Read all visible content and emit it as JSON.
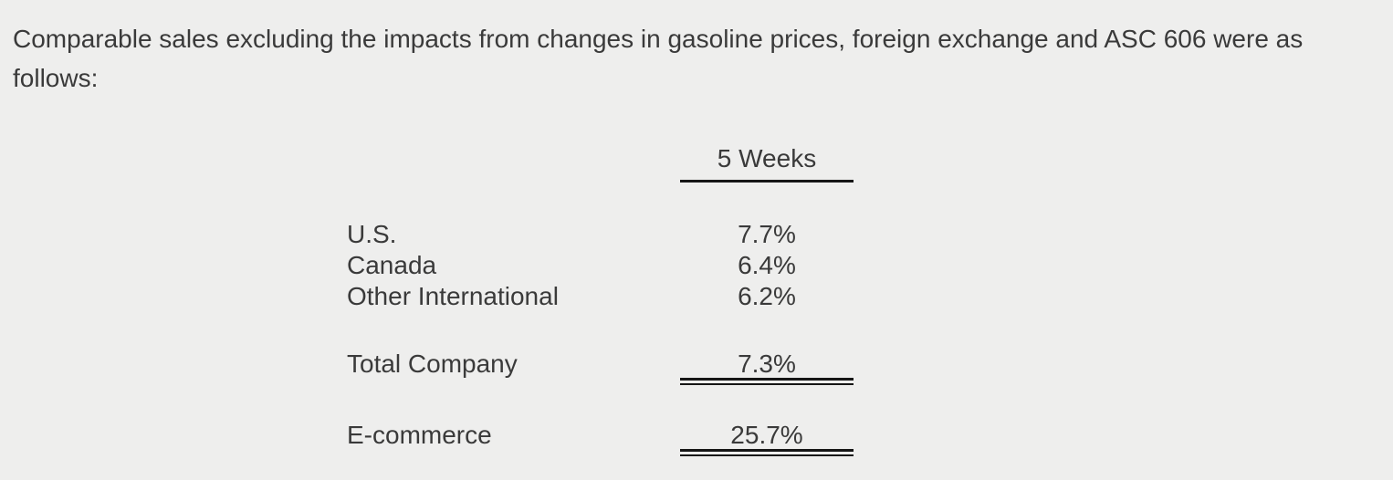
{
  "colors": {
    "background": "#eeeeed",
    "text": "#3a3a3a",
    "rule": "#161616"
  },
  "paragraph": "Comparable sales excluding the impacts from changes in gasoline prices, foreign exchange and ASC 606 were as follows:",
  "table": {
    "column_header": "5 Weeks",
    "rows": [
      {
        "label": "U.S.",
        "value": "7.7%"
      },
      {
        "label": "Canada",
        "value": "6.4%"
      },
      {
        "label": "Other International",
        "value": "6.2%"
      }
    ],
    "total_row": {
      "label": "Total Company",
      "value": "7.3%"
    },
    "ecommerce_row": {
      "label": "E-commerce",
      "value": "25.7%"
    }
  }
}
